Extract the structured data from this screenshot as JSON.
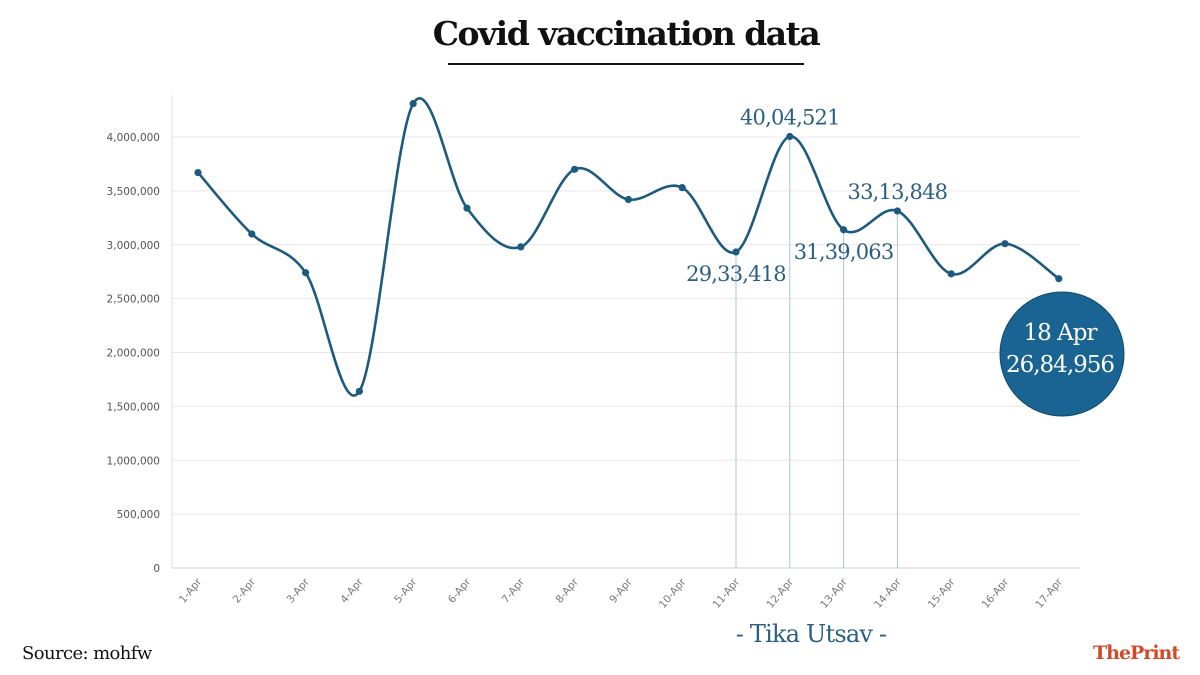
{
  "title": "Covid vaccination data",
  "source": "Source: mohfw",
  "logo": "ThePrint",
  "tika_label": "- Tika Utsav -",
  "colors": {
    "line": "#1d5a80",
    "circle": "#1a6493",
    "annotation": "#2a5f83",
    "grid": "#e8e8e8",
    "logo": "#d04a2a"
  },
  "chart_data": {
    "type": "line",
    "categories": [
      "1-Apr",
      "2-Apr",
      "3-Apr",
      "4-Apr",
      "5-Apr",
      "6-Apr",
      "7-Apr",
      "8-Apr",
      "9-Apr",
      "10-Apr",
      "11-Apr",
      "12-Apr",
      "13-Apr",
      "14-Apr",
      "15-Apr",
      "16-Apr",
      "17-Apr"
    ],
    "values": [
      3670000,
      3100000,
      2740000,
      1640000,
      4310000,
      3340000,
      2980000,
      3700000,
      3420000,
      3530000,
      2933418,
      4004521,
      3139063,
      3313848,
      2730000,
      3010000,
      2684956
    ],
    "ylim": [
      0,
      4400000
    ],
    "yticks": [
      0,
      500000,
      1000000,
      1500000,
      2000000,
      2500000,
      3000000,
      3500000,
      4000000
    ],
    "ytick_labels": [
      "0",
      "500,000",
      "1,000,000",
      "1,500,000",
      "2,000,000",
      "2,500,000",
      "3,000,000",
      "3,500,000",
      "4,000,000"
    ],
    "grid": true,
    "annotations": [
      {
        "category": "11-Apr",
        "label": "29,33,418",
        "position": "below"
      },
      {
        "category": "12-Apr",
        "label": "40,04,521",
        "position": "above"
      },
      {
        "category": "13-Apr",
        "label": "31,39,063",
        "position": "below"
      },
      {
        "category": "14-Apr",
        "label": "33,13,848",
        "position": "above"
      }
    ],
    "highlight": {
      "category": "17-Apr",
      "line1": "18 Apr",
      "line2": "26,84,956"
    }
  }
}
